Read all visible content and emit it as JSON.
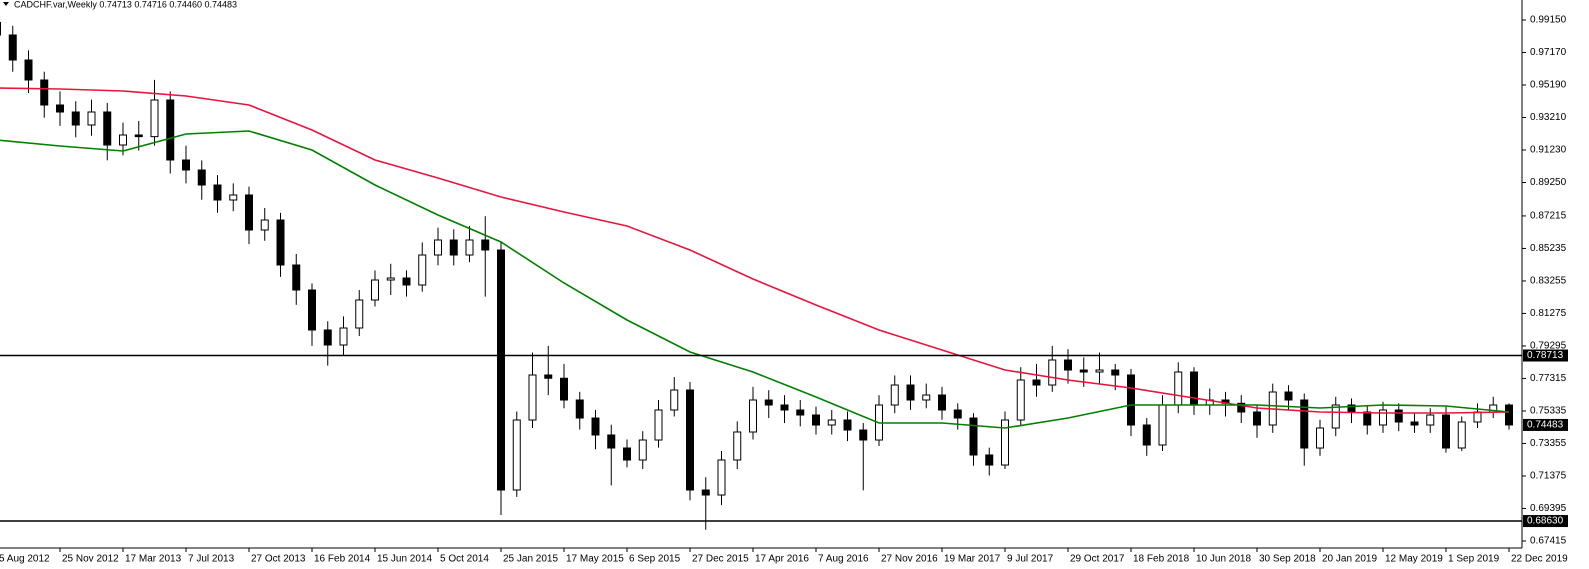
{
  "chart_data": {
    "type": "candlestick",
    "title": "CADCHF.var,Weekly  0.74713 0.74716 0.74460 0.74483",
    "categories": [
      "5 Aug 2012",
      null,
      null,
      null,
      "25 Nov 2012",
      null,
      null,
      null,
      "17 Mar 2013",
      null,
      null,
      null,
      "7 Jul 2013",
      null,
      null,
      null,
      "27 Oct 2013",
      null,
      null,
      null,
      "16 Feb 2014",
      null,
      null,
      null,
      "15 Jun 2014",
      null,
      null,
      null,
      "5 Oct 2014",
      null,
      null,
      null,
      "25 Jan 2015",
      null,
      null,
      null,
      "17 May 2015",
      null,
      null,
      null,
      "6 Sep 2015",
      null,
      null,
      null,
      "27 Dec 2015",
      null,
      null,
      null,
      "17 Apr 2016",
      null,
      null,
      null,
      "7 Aug 2016",
      null,
      null,
      null,
      "27 Nov 2016",
      null,
      null,
      null,
      "19 Mar 2017",
      null,
      null,
      null,
      "9 Jul 2017",
      null,
      null,
      null,
      "29 Oct 2017",
      null,
      null,
      null,
      "18 Feb 2018",
      null,
      null,
      null,
      "10 Jun 2018",
      null,
      null,
      null,
      "30 Sep 2018",
      null,
      null,
      null,
      "20 Jan 2019",
      null,
      null,
      null,
      "12 May 2019",
      null,
      null,
      null,
      "1 Sep 2019",
      null,
      null,
      null,
      "22 Dec 2019"
    ],
    "open": [
      0.99,
      0.98236,
      0.96713,
      0.95495,
      0.93972,
      0.93546,
      0.92754,
      0.93546,
      0.91536,
      0.92145,
      0.92045,
      0.94277,
      0.90622,
      0.90013,
      0.89099,
      0.88185,
      0.8849,
      0.86358,
      0.86967,
      0.84226,
      0.82703,
      0.80267,
      0.79353,
      0.80389,
      0.82094,
      0.83312,
      0.83434,
      0.83008,
      0.84835,
      0.85749,
      0.84835,
      0.85749,
      0.8514,
      0.70521,
      0.74785,
      0.77526,
      0.77326,
      0.76003,
      0.74906,
      0.73871,
      0.73079,
      0.72348,
      0.73566,
      0.75394,
      0.76612,
      0.70521,
      0.70216,
      0.72348,
      0.74054,
      0.76003,
      0.75698,
      0.75394,
      0.75089,
      0.7448,
      0.74785,
      0.74175,
      0.73566,
      0.75698,
      0.76916,
      0.76003,
      0.76307,
      0.75394,
      0.74906,
      0.72653,
      0.72043,
      0.74785,
      0.77221,
      0.76916,
      0.78439,
      0.7783,
      0.77708,
      0.7783,
      0.77526,
      0.7448,
      0.73262,
      0.75698,
      0.77708,
      0.75698,
      0.76003,
      0.75803,
      0.75272,
      0.7448,
      0.7649,
      0.76003,
      0.73079,
      0.74297,
      0.75698,
      0.75272,
      0.7448,
      0.75394,
      0.74663,
      0.7448,
      0.75089,
      0.73079,
      0.74663,
      0.75272,
      0.75698
    ],
    "high": [
      0.996,
      0.988,
      0.973,
      0.96,
      0.948,
      0.942,
      0.943,
      0.941,
      0.929,
      0.93,
      0.955,
      0.948,
      0.915,
      0.906,
      0.897,
      0.892,
      0.89,
      0.877,
      0.874,
      0.849,
      0.831,
      0.808,
      0.811,
      0.827,
      0.839,
      0.843,
      0.839,
      0.856,
      0.865,
      0.864,
      0.866,
      0.872,
      0.856,
      0.753,
      0.789,
      0.793,
      0.782,
      0.765,
      0.754,
      0.745,
      0.736,
      0.741,
      0.76,
      0.774,
      0.771,
      0.713,
      0.729,
      0.747,
      0.768,
      0.766,
      0.763,
      0.76,
      0.756,
      0.754,
      0.753,
      0.746,
      0.763,
      0.775,
      0.775,
      0.77,
      0.768,
      0.758,
      0.752,
      0.731,
      0.753,
      0.78,
      0.782,
      0.793,
      0.791,
      0.786,
      0.789,
      0.782,
      0.779,
      0.749,
      0.763,
      0.783,
      0.78,
      0.767,
      0.765,
      0.763,
      0.757,
      0.77,
      0.769,
      0.764,
      0.748,
      0.762,
      0.761,
      0.757,
      0.759,
      0.758,
      0.752,
      0.755,
      0.756,
      0.75,
      0.758,
      0.762,
      0.758
    ],
    "low": [
      0.977,
      0.96,
      0.947,
      0.932,
      0.927,
      0.92,
      0.921,
      0.906,
      0.909,
      0.912,
      0.915,
      0.898,
      0.892,
      0.882,
      0.874,
      0.875,
      0.855,
      0.857,
      0.835,
      0.818,
      0.793,
      0.781,
      0.787,
      0.799,
      0.817,
      0.824,
      0.823,
      0.826,
      0.842,
      0.842,
      0.844,
      0.823,
      0.69,
      0.701,
      0.743,
      0.763,
      0.755,
      0.742,
      0.73,
      0.708,
      0.719,
      0.718,
      0.731,
      0.75,
      0.699,
      0.681,
      0.696,
      0.718,
      0.736,
      0.749,
      0.746,
      0.744,
      0.739,
      0.739,
      0.735,
      0.705,
      0.732,
      0.752,
      0.754,
      0.755,
      0.748,
      0.742,
      0.72,
      0.714,
      0.718,
      0.744,
      0.762,
      0.765,
      0.77,
      0.768,
      0.77,
      0.766,
      0.738,
      0.726,
      0.729,
      0.752,
      0.751,
      0.751,
      0.75,
      0.746,
      0.737,
      0.74,
      0.754,
      0.72,
      0.726,
      0.738,
      0.746,
      0.739,
      0.74,
      0.741,
      0.74,
      0.74,
      0.728,
      0.729,
      0.743,
      0.749,
      0.742
    ],
    "close": [
      0.98236,
      0.96713,
      0.95495,
      0.93972,
      0.93546,
      0.92754,
      0.93546,
      0.91536,
      0.92145,
      0.92045,
      0.94277,
      0.90622,
      0.90013,
      0.89099,
      0.88185,
      0.8849,
      0.86358,
      0.86967,
      0.84226,
      0.82703,
      0.80267,
      0.79353,
      0.80389,
      0.82094,
      0.83312,
      0.83434,
      0.83008,
      0.84835,
      0.85749,
      0.84835,
      0.85749,
      0.8514,
      0.70521,
      0.74785,
      0.77526,
      0.77326,
      0.76003,
      0.74906,
      0.73871,
      0.73079,
      0.72348,
      0.73566,
      0.75394,
      0.76612,
      0.70521,
      0.70216,
      0.72348,
      0.74054,
      0.76003,
      0.75698,
      0.75394,
      0.75089,
      0.7448,
      0.74785,
      0.74175,
      0.73566,
      0.75698,
      0.76916,
      0.76003,
      0.76307,
      0.75394,
      0.74906,
      0.72653,
      0.72043,
      0.74785,
      0.77221,
      0.76916,
      0.78439,
      0.7783,
      0.77708,
      0.7783,
      0.77526,
      0.7448,
      0.73262,
      0.75698,
      0.77708,
      0.75698,
      0.76003,
      0.75803,
      0.75272,
      0.7448,
      0.7649,
      0.76003,
      0.73079,
      0.74297,
      0.75698,
      0.75272,
      0.7448,
      0.75394,
      0.74663,
      0.7448,
      0.75089,
      0.73079,
      0.74663,
      0.75272,
      0.75698,
      0.74483
    ],
    "up_color": "#ffffff",
    "down_color": "#000000",
    "lines": [
      {
        "color": "#e8143c",
        "values": [
          0.95008,
          0.94947,
          0.94825,
          0.9452,
          0.93972,
          0.92449,
          0.90622,
          0.89525,
          0.88368,
          0.87454,
          0.86602,
          0.8514,
          0.83373,
          0.8179,
          0.80267,
          0.79048,
          0.7783,
          0.77221,
          0.76734,
          0.76125,
          0.75515,
          0.75272,
          0.75211,
          0.75211,
          0.75272
        ]
      },
      {
        "color": "#008000",
        "values": [
          0.9184,
          0.91475,
          0.9117,
          0.92206,
          0.92388,
          0.91231,
          0.89099,
          0.87272,
          0.85627,
          0.8313,
          0.80876,
          0.78927,
          0.77708,
          0.76186,
          0.74602,
          0.74602,
          0.74297,
          0.74906,
          0.75698,
          0.75698,
          0.75698,
          0.75515,
          0.75698,
          0.75637,
          0.75272
        ]
      }
    ],
    "hlines": [
      0.78713,
      {
        "value": 0.6863,
        "label": "0.68630"
      }
    ],
    "ylim": [
      0.66988,
      1.00368
    ],
    "yticks": [
      {
        "value": 0.9915,
        "label": "0.99150"
      },
      {
        "value": 0.9717,
        "label": "0.97170"
      },
      {
        "value": 0.9519,
        "label": "0.95190"
      },
      {
        "value": 0.9321,
        "label": "0.93210"
      },
      {
        "value": 0.9123,
        "label": "0.91230"
      },
      {
        "value": 0.8925,
        "label": "0.89250"
      },
      0.87215,
      0.85235,
      0.83255,
      0.81275,
      0.79295,
      0.77315,
      0.75335,
      0.73355,
      0.71375,
      0.69395,
      0.67415
    ]
  }
}
